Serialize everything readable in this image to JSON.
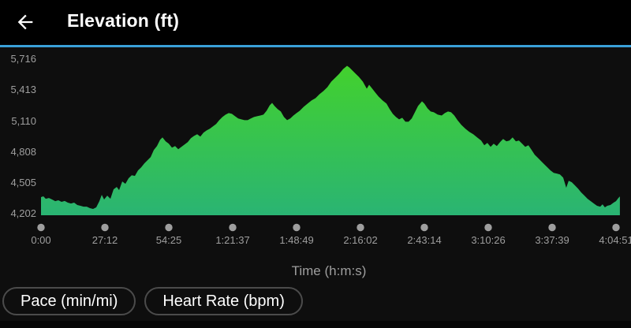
{
  "header": {
    "title": "Elevation (ft)",
    "back_icon": "arrow-left"
  },
  "buttons": {
    "pace_label": "Pace (min/mi)",
    "heart_rate_label": "Heart Rate (bpm)"
  },
  "colors": {
    "header_bg": "#000000",
    "page_bg": "#0e0e0e",
    "divider_blue": "#3aa0d8",
    "area_green_top": "#43d22c",
    "area_green_bottom": "#2ab473",
    "axis_text_gray": "#9e9e9e",
    "tick_dot_gray": "#9e9e9e",
    "pill_border": "#4b4b4b",
    "pill_text": "#ffffff"
  },
  "chart_data": {
    "type": "area",
    "title": "Elevation (ft)",
    "xlabel": "Time (h:m:s)",
    "ylabel": "Elevation (ft)",
    "x_unit": "seconds",
    "y_unit": "ft",
    "x_range_s": [
      0,
      14790
    ],
    "y_range_ft": [
      4202,
      5716
    ],
    "grid": false,
    "legend": "none",
    "y_ticks": [
      {
        "label": "5,716",
        "value": 5716
      },
      {
        "label": "5,413",
        "value": 5413
      },
      {
        "label": "5,110",
        "value": 5110
      },
      {
        "label": "4,808",
        "value": 4808
      },
      {
        "label": "4,505",
        "value": 4505
      },
      {
        "label": "4,202",
        "value": 4202
      }
    ],
    "x_ticks": [
      {
        "label": "0:00",
        "seconds": 0
      },
      {
        "label": "27:12",
        "seconds": 1632
      },
      {
        "label": "54:25",
        "seconds": 3265
      },
      {
        "label": "1:21:37",
        "seconds": 4897
      },
      {
        "label": "1:48:49",
        "seconds": 6529
      },
      {
        "label": "2:16:02",
        "seconds": 8162
      },
      {
        "label": "2:43:14",
        "seconds": 9794
      },
      {
        "label": "3:10:26",
        "seconds": 11426
      },
      {
        "label": "3:37:39",
        "seconds": 13059
      },
      {
        "label": "4:04:51",
        "seconds": 14691
      }
    ],
    "series": [
      {
        "name": "elevation",
        "points": [
          [
            0,
            4364
          ],
          [
            60,
            4372
          ],
          [
            121,
            4348
          ],
          [
            202,
            4356
          ],
          [
            282,
            4341
          ],
          [
            363,
            4325
          ],
          [
            443,
            4333
          ],
          [
            524,
            4318
          ],
          [
            605,
            4326
          ],
          [
            685,
            4310
          ],
          [
            766,
            4302
          ],
          [
            846,
            4310
          ],
          [
            927,
            4287
          ],
          [
            1008,
            4279
          ],
          [
            1088,
            4271
          ],
          [
            1169,
            4271
          ],
          [
            1249,
            4256
          ],
          [
            1330,
            4248
          ],
          [
            1411,
            4264
          ],
          [
            1491,
            4325
          ],
          [
            1552,
            4387
          ],
          [
            1612,
            4341
          ],
          [
            1693,
            4379
          ],
          [
            1773,
            4348
          ],
          [
            1854,
            4441
          ],
          [
            1935,
            4464
          ],
          [
            1995,
            4433
          ],
          [
            2076,
            4518
          ],
          [
            2156,
            4495
          ],
          [
            2237,
            4549
          ],
          [
            2317,
            4579
          ],
          [
            2398,
            4572
          ],
          [
            2479,
            4626
          ],
          [
            2559,
            4656
          ],
          [
            2640,
            4695
          ],
          [
            2720,
            4726
          ],
          [
            2801,
            4756
          ],
          [
            2882,
            4826
          ],
          [
            2962,
            4864
          ],
          [
            3043,
            4926
          ],
          [
            3103,
            4949
          ],
          [
            3184,
            4910
          ],
          [
            3264,
            4887
          ],
          [
            3345,
            4849
          ],
          [
            3426,
            4864
          ],
          [
            3506,
            4833
          ],
          [
            3587,
            4856
          ],
          [
            3667,
            4880
          ],
          [
            3748,
            4903
          ],
          [
            3829,
            4941
          ],
          [
            3909,
            4964
          ],
          [
            3990,
            4980
          ],
          [
            4071,
            4957
          ],
          [
            4151,
            4995
          ],
          [
            4232,
            5018
          ],
          [
            4312,
            5034
          ],
          [
            4393,
            5057
          ],
          [
            4474,
            5080
          ],
          [
            4554,
            5118
          ],
          [
            4635,
            5149
          ],
          [
            4715,
            5172
          ],
          [
            4796,
            5188
          ],
          [
            4877,
            5180
          ],
          [
            4957,
            5157
          ],
          [
            5038,
            5134
          ],
          [
            5118,
            5126
          ],
          [
            5199,
            5118
          ],
          [
            5280,
            5118
          ],
          [
            5360,
            5134
          ],
          [
            5441,
            5149
          ],
          [
            5521,
            5157
          ],
          [
            5602,
            5164
          ],
          [
            5683,
            5172
          ],
          [
            5763,
            5210
          ],
          [
            5844,
            5264
          ],
          [
            5905,
            5287
          ],
          [
            5965,
            5257
          ],
          [
            6046,
            5226
          ],
          [
            6126,
            5203
          ],
          [
            6207,
            5149
          ],
          [
            6287,
            5118
          ],
          [
            6368,
            5134
          ],
          [
            6449,
            5164
          ],
          [
            6529,
            5188
          ],
          [
            6610,
            5210
          ],
          [
            6711,
            5249
          ],
          [
            6811,
            5280
          ],
          [
            6912,
            5311
          ],
          [
            7013,
            5334
          ],
          [
            7114,
            5372
          ],
          [
            7214,
            5403
          ],
          [
            7315,
            5441
          ],
          [
            7416,
            5496
          ],
          [
            7517,
            5534
          ],
          [
            7617,
            5572
          ],
          [
            7718,
            5619
          ],
          [
            7819,
            5650
          ],
          [
            7879,
            5634
          ],
          [
            7940,
            5611
          ],
          [
            8020,
            5580
          ],
          [
            8121,
            5542
          ],
          [
            8222,
            5496
          ],
          [
            8323,
            5426
          ],
          [
            8383,
            5465
          ],
          [
            8464,
            5426
          ],
          [
            8544,
            5387
          ],
          [
            8625,
            5349
          ],
          [
            8726,
            5311
          ],
          [
            8826,
            5280
          ],
          [
            8907,
            5226
          ],
          [
            8988,
            5180
          ],
          [
            9068,
            5149
          ],
          [
            9149,
            5126
          ],
          [
            9229,
            5141
          ],
          [
            9310,
            5103
          ],
          [
            9391,
            5103
          ],
          [
            9471,
            5134
          ],
          [
            9552,
            5195
          ],
          [
            9632,
            5257
          ],
          [
            9733,
            5303
          ],
          [
            9794,
            5280
          ],
          [
            9874,
            5234
          ],
          [
            9955,
            5203
          ],
          [
            10035,
            5195
          ],
          [
            10136,
            5172
          ],
          [
            10237,
            5164
          ],
          [
            10317,
            5188
          ],
          [
            10398,
            5203
          ],
          [
            10478,
            5195
          ],
          [
            10559,
            5164
          ],
          [
            10640,
            5118
          ],
          [
            10740,
            5072
          ],
          [
            10841,
            5034
          ],
          [
            10942,
            5003
          ],
          [
            11043,
            4980
          ],
          [
            11143,
            4949
          ],
          [
            11244,
            4918
          ],
          [
            11325,
            4872
          ],
          [
            11405,
            4895
          ],
          [
            11486,
            4856
          ],
          [
            11566,
            4887
          ],
          [
            11647,
            4864
          ],
          [
            11728,
            4903
          ],
          [
            11808,
            4934
          ],
          [
            11889,
            4910
          ],
          [
            11969,
            4918
          ],
          [
            12050,
            4949
          ],
          [
            12131,
            4910
          ],
          [
            12211,
            4918
          ],
          [
            12292,
            4887
          ],
          [
            12372,
            4856
          ],
          [
            12453,
            4872
          ],
          [
            12534,
            4826
          ],
          [
            12614,
            4780
          ],
          [
            12695,
            4749
          ],
          [
            12775,
            4718
          ],
          [
            12856,
            4687
          ],
          [
            12937,
            4656
          ],
          [
            13017,
            4626
          ],
          [
            13098,
            4602
          ],
          [
            13178,
            4595
          ],
          [
            13259,
            4587
          ],
          [
            13340,
            4556
          ],
          [
            13420,
            4456
          ],
          [
            13481,
            4525
          ],
          [
            13561,
            4510
          ],
          [
            13642,
            4479
          ],
          [
            13722,
            4448
          ],
          [
            13803,
            4410
          ],
          [
            13884,
            4379
          ],
          [
            13964,
            4348
          ],
          [
            14045,
            4325
          ],
          [
            14125,
            4302
          ],
          [
            14206,
            4279
          ],
          [
            14287,
            4271
          ],
          [
            14347,
            4294
          ],
          [
            14407,
            4264
          ],
          [
            14468,
            4279
          ],
          [
            14548,
            4287
          ],
          [
            14629,
            4310
          ],
          [
            14691,
            4325
          ],
          [
            14751,
            4356
          ],
          [
            14790,
            4371
          ]
        ]
      }
    ]
  }
}
